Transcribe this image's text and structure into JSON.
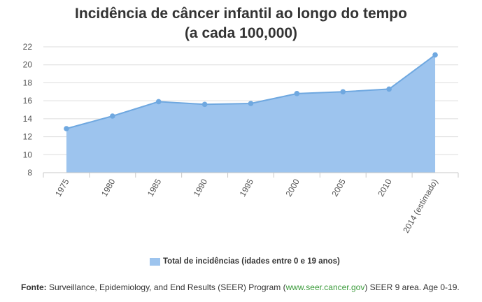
{
  "chart_data": {
    "type": "area",
    "title": "Incidência de câncer infantil ao longo do tempo",
    "subtitle": "(a cada 100,000)",
    "categories": [
      "1975",
      "1980",
      "1985",
      "1990",
      "1995",
      "2000",
      "2005",
      "2010",
      "2014 (estimado)"
    ],
    "series": [
      {
        "name": "Total de incidências (idades entre 0 e 19 anos)",
        "values": [
          12.9,
          14.3,
          15.9,
          15.6,
          15.7,
          16.8,
          17.0,
          17.3,
          21.1
        ]
      }
    ],
    "yticks": [
      "8",
      "10",
      "12",
      "14",
      "16",
      "18",
      "20",
      "22"
    ],
    "ylim": [
      8,
      22
    ],
    "grid": true,
    "legend_position": "bottom",
    "colors": {
      "fill": "#9dc4ee",
      "line": "#6fa8e0",
      "point": "#6fa8e0",
      "grid": "#dddddd"
    }
  },
  "source": {
    "label": "Fonte:",
    "text_before": "Surveillance, Epidemiology, and End Results (SEER) Program (",
    "link": "www.seer.cancer.gov",
    "text_after": ") SEER 9 area. Age 0-19."
  }
}
